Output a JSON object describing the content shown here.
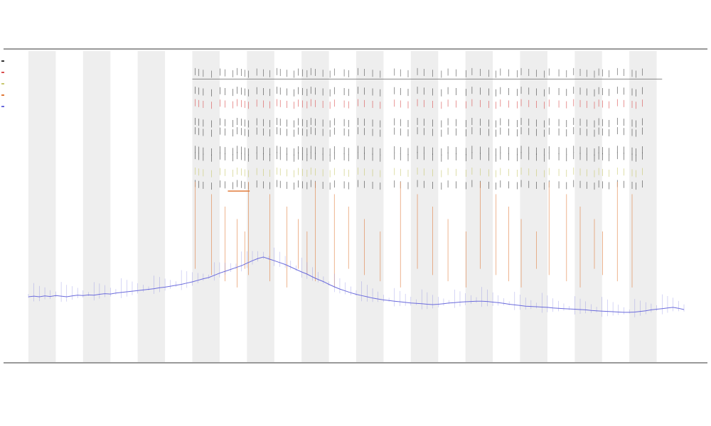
{
  "chart_data": {
    "type": "line",
    "title": "",
    "subtitles": [],
    "xlabel": "",
    "ylabel": "",
    "x_range": [
      0,
      120
    ],
    "ylim": [
      0,
      100
    ],
    "bands": {
      "color": "#eeeeee",
      "start": 0,
      "width": 5,
      "step": 10
    },
    "series": [
      {
        "color": "#6b6bdc",
        "values": [
          21.0,
          21.2,
          21.0,
          21.3,
          21.1,
          21.4,
          21.2,
          21.0,
          21.3,
          21.5,
          21.4,
          21.6,
          21.5,
          21.8,
          22.0,
          21.9,
          22.2,
          22.4,
          22.6,
          22.8,
          23.0,
          23.2,
          23.4,
          23.6,
          23.9,
          24.1,
          24.4,
          24.7,
          25.0,
          25.4,
          25.8,
          26.3,
          26.8,
          27.2,
          27.9,
          28.6,
          29.2,
          29.8,
          30.4,
          31.0,
          31.8,
          32.6,
          33.3,
          33.8,
          33.2,
          32.6,
          32.0,
          31.4,
          30.6,
          29.8,
          29.0,
          28.3,
          27.4,
          26.6,
          25.9,
          25.0,
          24.2,
          23.5,
          22.9,
          22.3,
          21.8,
          21.4,
          21.0,
          20.6,
          20.3,
          20.0,
          19.8,
          19.6,
          19.4,
          19.2,
          19.0,
          18.9,
          18.8,
          18.6,
          18.5,
          18.6,
          18.8,
          19.0,
          19.1,
          19.3,
          19.4,
          19.5,
          19.6,
          19.6,
          19.5,
          19.3,
          19.1,
          18.9,
          18.6,
          18.4,
          18.2,
          18.0,
          17.9,
          17.8,
          17.7,
          17.6,
          17.4,
          17.3,
          17.2,
          17.1,
          17.0,
          16.9,
          16.8,
          16.6,
          16.5,
          16.4,
          16.3,
          16.2,
          16.1,
          16.0,
          16.0,
          16.1,
          16.3,
          16.5,
          16.8,
          17.0,
          17.2,
          17.4,
          17.6,
          17.3,
          16.9
        ]
      }
    ],
    "event_rows": [
      {
        "color": "#555555",
        "y": 93
      },
      {
        "color": "#444444",
        "y": 87
      },
      {
        "color": "#d95050",
        "y": 83
      },
      {
        "color": "#444444",
        "y": 77
      },
      {
        "color": "#444444",
        "y": 74
      },
      {
        "color": "#444444",
        "y": 68
      },
      {
        "color": "#444444",
        "y": 66
      },
      {
        "color": "#c8c870",
        "y": 61
      },
      {
        "color": "#444444",
        "y": 57
      }
    ],
    "event_x": [
      30.5,
      31.2,
      32.0,
      33.5,
      35.1,
      36.0,
      37.4,
      38.2,
      39.0,
      39.6,
      40.3,
      41.8,
      43.0,
      44.2,
      45.5,
      46.1,
      47.3,
      48.6,
      49.4,
      50.2,
      51.0,
      51.7,
      52.5,
      53.9,
      55.2,
      56.0,
      57.8,
      58.6,
      60.3,
      61.5,
      63.0,
      64.4,
      67.0,
      68.1,
      69.5,
      71.2,
      72.4,
      74.0,
      75.6,
      76.8,
      78.3,
      80.1,
      81.2,
      82.7,
      84.3,
      85.6,
      86.4,
      87.9,
      89.5,
      90.2,
      91.6,
      93.0,
      94.4,
      95.3,
      97.1,
      98.5,
      99.8,
      101.0,
      102.2,
      103.6,
      104.4,
      105.1,
      106.3,
      107.8,
      109.0,
      110.5,
      111.2,
      112.4
    ],
    "orange_x": [
      30.5,
      33.5,
      36.0,
      38.2,
      39.6,
      40.3,
      44.2,
      47.3,
      49.4,
      51.0,
      52.5,
      56.0,
      58.6,
      61.5,
      64.4,
      68.1,
      71.2,
      74.0,
      76.8,
      80.1,
      82.7,
      85.6,
      87.9,
      90.2,
      93.0,
      95.3,
      98.5,
      101.0,
      103.6,
      105.1,
      107.8,
      110.5
    ],
    "orange_color": "#e07a3a",
    "row_line": {
      "y": 91,
      "x_from": 30,
      "x_to": 116,
      "color": "#888888"
    },
    "highlight_segment": {
      "y": 55,
      "x_from": 36.5,
      "x_to": 40.5,
      "color": "#e07a3a"
    },
    "grid": false,
    "legend": {
      "position": "top-left",
      "entries": [
        {
          "label": "",
          "color": "#333333"
        },
        {
          "label": "",
          "color": "#d95050"
        },
        {
          "label": "",
          "color": "#c8c870"
        },
        {
          "label": "",
          "color": "#e07a3a"
        },
        {
          "label": "",
          "color": "#6b6bdc"
        }
      ]
    }
  }
}
